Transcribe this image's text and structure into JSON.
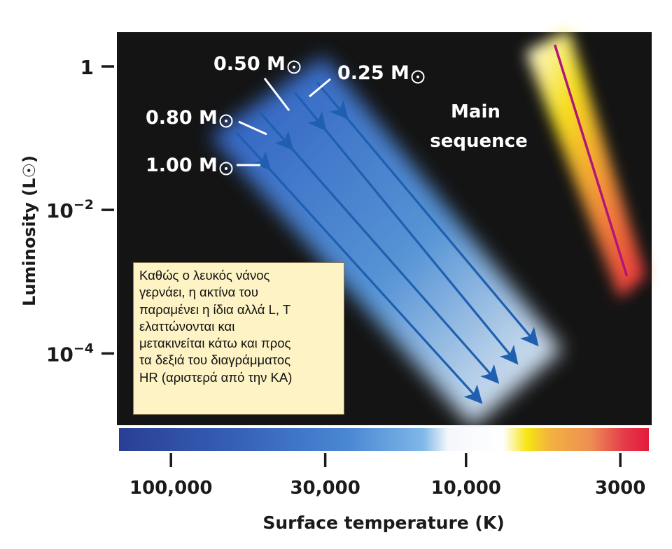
{
  "chart_data": {
    "type": "line",
    "title": "",
    "xlabel": "Surface temperature (K)",
    "ylabel": "Luminosity (L☉)",
    "x_scale": "log",
    "x_reversed": true,
    "xlim": [
      150000,
      2400
    ],
    "xticks": [
      {
        "value": 100000,
        "label": "100,000"
      },
      {
        "value": 30000,
        "label": "30,000"
      },
      {
        "value": 10000,
        "label": "10,000"
      },
      {
        "value": 3000,
        "label": "3000"
      }
    ],
    "y_scale": "log",
    "ylim": [
      1e-05,
      3
    ],
    "yticks": [
      {
        "value": 1,
        "label": "1",
        "sup": ""
      },
      {
        "value": 0.01,
        "label": "10",
        "sup": "−2"
      },
      {
        "value": 0.0001,
        "label": "10",
        "sup": "−4"
      }
    ],
    "grid": false,
    "series": [
      {
        "name": "1.00 M☉",
        "label_main": "1.00 M",
        "arrow": {
          "start": [
            60000,
            0.12
          ],
          "end": [
            9000,
            2.2e-05
          ]
        }
      },
      {
        "name": "0.80 M☉",
        "label_main": "0.80 M",
        "arrow": {
          "start": [
            50000,
            0.23
          ],
          "end": [
            7900,
            4.2e-05
          ]
        }
      },
      {
        "name": "0.50 M☉",
        "label_main": "0.50 M",
        "arrow": {
          "start": [
            38000,
            0.43
          ],
          "end": [
            6800,
            7.8e-05
          ]
        }
      },
      {
        "name": "0.25 M☉",
        "label_main": "0.25 M",
        "arrow": {
          "start": [
            32000,
            0.6
          ],
          "end": [
            5800,
            0.00014
          ]
        }
      }
    ],
    "main_sequence": {
      "label_lines": [
        "Main",
        "sequence"
      ],
      "line": {
        "start": [
          5000,
          2.0
        ],
        "end": [
          2850,
          0.0012
        ]
      },
      "color": "#b0157a"
    },
    "colors": {
      "plot_background": "#141414",
      "arrow": "#1f5fb0",
      "track_glow": "#4d88da",
      "main_sequence_glow_hot": "#ffffff",
      "main_sequence_glow_mid": "#f6e020",
      "main_sequence_glow_cool": "#e8283c"
    },
    "color_bar": {
      "stops": [
        {
          "temperature": 150000,
          "color": "#2a3f94"
        },
        {
          "temperature": 60000,
          "color": "#3560b6"
        },
        {
          "temperature": 25000,
          "color": "#4a88d4"
        },
        {
          "temperature": 14000,
          "color": "#7fb7e8"
        },
        {
          "temperature": 11500,
          "color": "#f4f7fb"
        },
        {
          "temperature": 7500,
          "color": "#ffffff"
        },
        {
          "temperature": 6200,
          "color": "#f6e512"
        },
        {
          "temperature": 5200,
          "color": "#f2b240"
        },
        {
          "temperature": 3800,
          "color": "#ee8f54"
        },
        {
          "temperature": 2900,
          "color": "#e43a4a"
        },
        {
          "temperature": 2400,
          "color": "#e41a3a"
        }
      ]
    },
    "annotation": {
      "lines": [
        "Καθώς ο λευκός νάνος",
        "γερνάει, η ακτίνα του",
        "παραμένει η ίδια αλλά L, T",
        "ελαττώνονται και",
        "μετακινείται κάτω και προς",
        "τα δεξιά του διαγράμματος",
        "HR (αριστερά από την ΚΑ)"
      ]
    }
  }
}
